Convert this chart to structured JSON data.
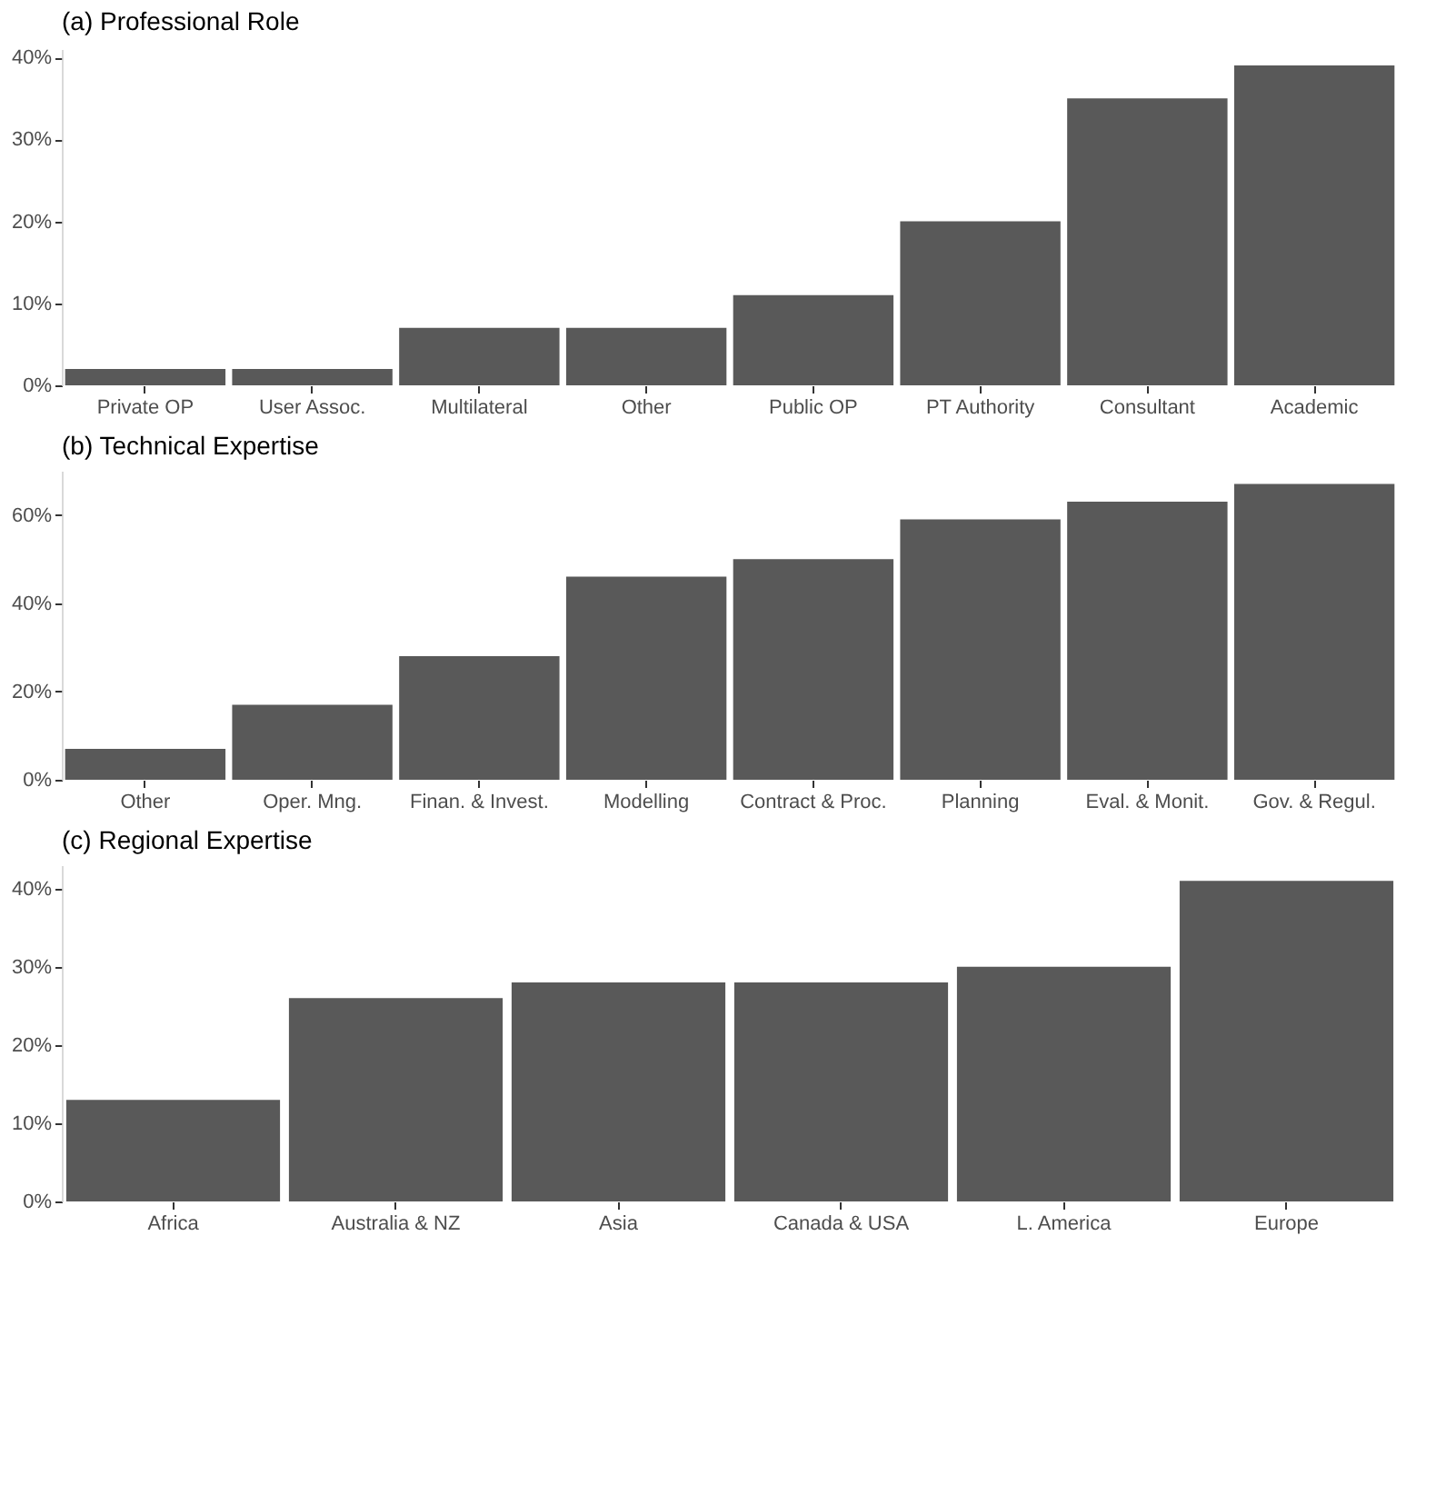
{
  "chart_data": [
    {
      "type": "bar",
      "title": "(a) Professional Role",
      "categories": [
        "Private OP",
        "User Assoc.",
        "Multilateral",
        "Other",
        "Public OP",
        "PT Authority",
        "Consultant",
        "Academic"
      ],
      "values": [
        2,
        2,
        7,
        7,
        11,
        20,
        35,
        39
      ],
      "color": "#595959",
      "ylim": [
        0,
        41
      ],
      "yticks": [
        {
          "value": 0,
          "label": "0%"
        },
        {
          "value": 10,
          "label": "10%"
        },
        {
          "value": 20,
          "label": "20%"
        },
        {
          "value": 30,
          "label": "30%"
        },
        {
          "value": 40,
          "label": "40%"
        }
      ],
      "grid": false
    },
    {
      "type": "bar",
      "title": "(b) Technical Expertise",
      "categories": [
        "Other",
        "Oper. Mng.",
        "Finan. & Invest.",
        "Modelling",
        "Contract & Proc.",
        "Planning",
        "Eval. & Monit.",
        "Gov. & Regul."
      ],
      "values": [
        7,
        17,
        28,
        46,
        50,
        59,
        63,
        67
      ],
      "color": "#595959",
      "ylim": [
        0,
        70
      ],
      "yticks": [
        {
          "value": 0,
          "label": "0%"
        },
        {
          "value": 20,
          "label": "20%"
        },
        {
          "value": 40,
          "label": "40%"
        },
        {
          "value": 60,
          "label": "60%"
        }
      ],
      "grid": false
    },
    {
      "type": "bar",
      "title": "(c) Regional Expertise",
      "categories": [
        "Africa",
        "Australia & NZ",
        "Asia",
        "Canada & USA",
        "L. America",
        "Europe"
      ],
      "values": [
        13,
        26,
        28,
        28,
        30,
        41
      ],
      "color": "#595959",
      "ylim": [
        0,
        43
      ],
      "yticks": [
        {
          "value": 0,
          "label": "0%"
        },
        {
          "value": 10,
          "label": "10%"
        },
        {
          "value": 20,
          "label": "20%"
        },
        {
          "value": 30,
          "label": "30%"
        },
        {
          "value": 40,
          "label": "40%"
        }
      ],
      "grid": false
    }
  ]
}
